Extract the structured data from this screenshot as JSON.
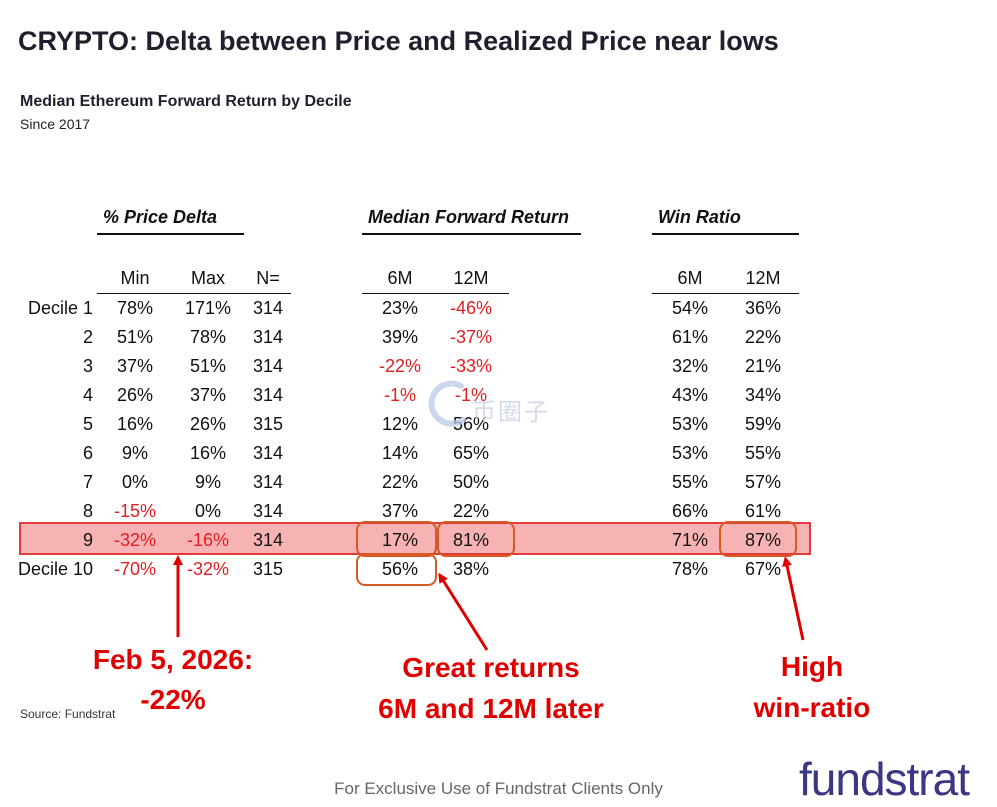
{
  "title": "CRYPTO: Delta between Price and Realized Price near lows",
  "subtitle": "Median Ethereum Forward Return by Decile",
  "since": "Since 2017",
  "groups": {
    "price_delta": "% Price Delta",
    "forward_return": "Median Forward Return",
    "win_ratio": "Win Ratio"
  },
  "headers": {
    "min": "Min",
    "max": "Max",
    "n": "N=",
    "fr6": "6M",
    "fr12": "12M",
    "wr6": "6M",
    "wr12": "12M"
  },
  "rows": [
    {
      "label": "Decile 1",
      "min": "78%",
      "max": "171%",
      "n": "314",
      "fr6": "23%",
      "fr12": "-46%",
      "wr6": "54%",
      "wr12": "36%"
    },
    {
      "label": "2",
      "min": "51%",
      "max": "78%",
      "n": "314",
      "fr6": "39%",
      "fr12": "-37%",
      "wr6": "61%",
      "wr12": "22%"
    },
    {
      "label": "3",
      "min": "37%",
      "max": "51%",
      "n": "314",
      "fr6": "-22%",
      "fr12": "-33%",
      "wr6": "32%",
      "wr12": "21%"
    },
    {
      "label": "4",
      "min": "26%",
      "max": "37%",
      "n": "314",
      "fr6": "-1%",
      "fr12": "-1%",
      "wr6": "43%",
      "wr12": "34%"
    },
    {
      "label": "5",
      "min": "16%",
      "max": "26%",
      "n": "315",
      "fr6": "12%",
      "fr12": "56%",
      "wr6": "53%",
      "wr12": "59%"
    },
    {
      "label": "6",
      "min": "9%",
      "max": "16%",
      "n": "314",
      "fr6": "14%",
      "fr12": "65%",
      "wr6": "53%",
      "wr12": "55%"
    },
    {
      "label": "7",
      "min": "0%",
      "max": "9%",
      "n": "314",
      "fr6": "22%",
      "fr12": "50%",
      "wr6": "55%",
      "wr12": "57%"
    },
    {
      "label": "8",
      "min": "-15%",
      "max": "0%",
      "n": "314",
      "fr6": "37%",
      "fr12": "22%",
      "wr6": "66%",
      "wr12": "61%"
    },
    {
      "label": "9",
      "min": "-32%",
      "max": "-16%",
      "n": "314",
      "fr6": "17%",
      "fr12": "81%",
      "wr6": "71%",
      "wr12": "87%"
    },
    {
      "label": "Decile 10",
      "min": "-70%",
      "max": "-32%",
      "n": "315",
      "fr6": "56%",
      "fr12": "38%",
      "wr6": "78%",
      "wr12": "67%"
    }
  ],
  "callouts": {
    "date_line1": "Feb 5, 2026:",
    "date_line2": "-22%",
    "returns_line1": "Great returns",
    "returns_line2": "6M and 12M later",
    "win_line1": "High",
    "win_line2": "win-ratio"
  },
  "source": "Source: Fundstrat",
  "footer": "For Exclusive Use of Fundstrat Clients Only",
  "brand": "fundstrat",
  "watermark": "币圈子",
  "colors": {
    "negative": "#e02020",
    "highlight_fill": "#f7b3b3",
    "highlight_border": "#e23b3b",
    "callout": "#e00000",
    "box_border": "#d65a23",
    "brand": "#3a3783"
  }
}
